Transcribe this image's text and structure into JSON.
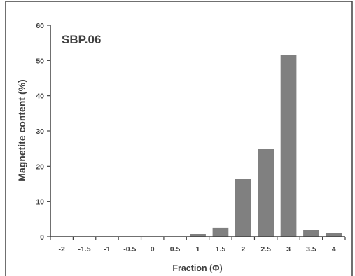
{
  "chart_data": {
    "type": "bar",
    "annotation": "SBP.06",
    "xlabel": "Fraction (Φ)",
    "ylabel": "Magnetite content (%)",
    "categories": [
      "-2",
      "-1.5",
      "-1",
      "-0.5",
      "0",
      "0.5",
      "1",
      "1.5",
      "2",
      "2.5",
      "3",
      "3.5",
      "4"
    ],
    "values": [
      0,
      0,
      0,
      0,
      0,
      0,
      0.8,
      2.6,
      16.4,
      25.0,
      51.5,
      1.8,
      1.2
    ],
    "ylim": [
      0,
      60
    ],
    "yticks": [
      "0",
      "10",
      "20",
      "30",
      "40",
      "50",
      "60"
    ],
    "grid": false,
    "legend": "none",
    "colors": {
      "bar": "#808080",
      "axis": "#404040",
      "text": "#404040",
      "frame": "#404040"
    }
  }
}
